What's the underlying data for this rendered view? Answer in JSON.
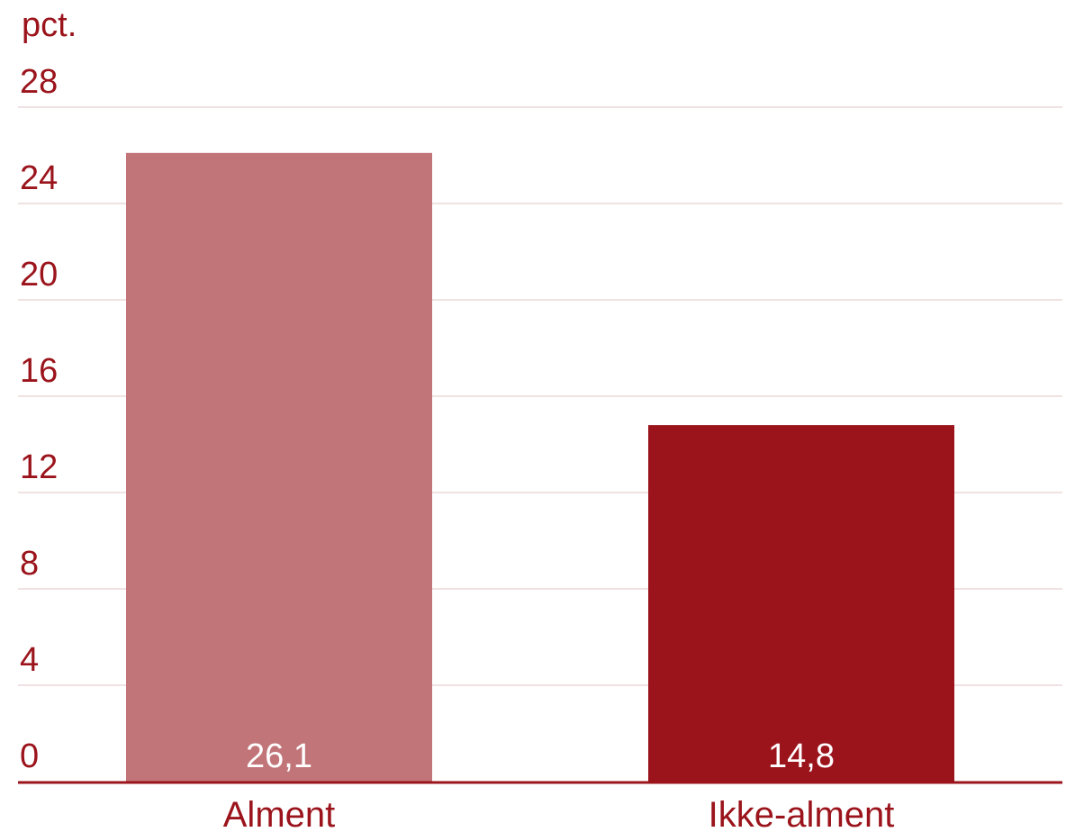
{
  "chart_data": {
    "type": "bar",
    "ylabel": "pct.",
    "categories": [
      "Alment",
      "Ikke-alment"
    ],
    "values": [
      26.1,
      14.8
    ],
    "value_labels": [
      "26,1",
      "14,8"
    ],
    "bar_colors": [
      "#c27579",
      "#9b141c"
    ],
    "ylim": [
      0,
      28
    ],
    "yticks": [
      0,
      4,
      8,
      12,
      16,
      20,
      24,
      28
    ],
    "grid": true,
    "legend": "none"
  },
  "colors": {
    "text": "#9b141c",
    "grid": "#ecd9da",
    "axis": "#9b141c"
  }
}
